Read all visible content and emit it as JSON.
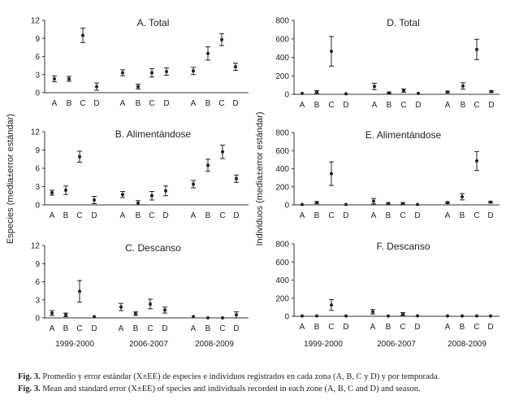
{
  "figure": {
    "left_ylabel": "Especies (media±error estándar)",
    "right_ylabel": "Individuos (media±error estándar)",
    "season_labels": [
      "1999-2000",
      "2006-2007",
      "2008-2009"
    ],
    "zone_labels": [
      "A",
      "B",
      "C",
      "D"
    ],
    "caption_es_label": "Fig. 3.",
    "caption_es_text": "Promedio y error estándar (X±EE) de especies e individuos registrados en cada zona (A, B, C y D) y por temporada.",
    "caption_en_label": "Fig. 3.",
    "caption_en_text": "Mean and standard error (X±EE) of species and individuals recorded in each zone (A, B, C and D) and season."
  },
  "chart_data": [
    {
      "type": "scatter",
      "title": "A. Total",
      "ylim": [
        0,
        12
      ],
      "yticks": [
        0,
        3,
        6,
        9,
        12
      ],
      "categories": [
        "A",
        "B",
        "C",
        "D",
        "A",
        "B",
        "C",
        "D",
        "A",
        "B",
        "C",
        "D"
      ],
      "groups": [
        "1999-2000",
        "2006-2007",
        "2008-2009"
      ],
      "values": [
        2.3,
        2.3,
        9.5,
        1.0,
        3.3,
        1.0,
        3.3,
        3.5,
        3.6,
        6.5,
        8.8,
        4.3
      ],
      "errors": [
        0.5,
        0.4,
        1.2,
        0.6,
        0.5,
        0.4,
        0.7,
        0.6,
        0.6,
        1.1,
        1.0,
        0.6
      ]
    },
    {
      "type": "scatter",
      "title": "B. Alimentándose",
      "ylim": [
        0,
        12
      ],
      "yticks": [
        0,
        3,
        6,
        9,
        12
      ],
      "categories": [
        "A",
        "B",
        "C",
        "D",
        "A",
        "B",
        "C",
        "D",
        "A",
        "B",
        "C",
        "D"
      ],
      "groups": [
        "1999-2000",
        "2006-2007",
        "2008-2009"
      ],
      "values": [
        2.0,
        2.4,
        7.9,
        0.8,
        1.7,
        0.3,
        1.5,
        2.3,
        3.4,
        6.5,
        8.7,
        4.3
      ],
      "errors": [
        0.4,
        0.7,
        0.9,
        0.6,
        0.5,
        0.4,
        0.7,
        0.8,
        0.6,
        1.0,
        1.1,
        0.6
      ]
    },
    {
      "type": "scatter",
      "title": "C. Descanso",
      "ylim": [
        0,
        12
      ],
      "yticks": [
        0,
        3,
        6,
        9,
        12
      ],
      "categories": [
        "A",
        "B",
        "C",
        "D",
        "A",
        "B",
        "C",
        "D",
        "A",
        "B",
        "C",
        "D"
      ],
      "groups": [
        "1999-2000",
        "2006-2007",
        "2008-2009"
      ],
      "values": [
        0.8,
        0.5,
        4.4,
        0.2,
        1.8,
        0.7,
        2.3,
        1.3,
        0.2,
        0.0,
        0.0,
        0.5
      ],
      "errors": [
        0.4,
        0.3,
        1.8,
        0.1,
        0.6,
        0.3,
        0.8,
        0.5,
        0.1,
        0.0,
        0.0,
        0.5
      ]
    },
    {
      "type": "scatter",
      "title": "D. Total",
      "ylim": [
        0,
        800
      ],
      "yticks": [
        0,
        200,
        400,
        600,
        800
      ],
      "categories": [
        "A",
        "B",
        "C",
        "D",
        "A",
        "B",
        "C",
        "D",
        "A",
        "B",
        "C",
        "D"
      ],
      "groups": [
        "1999-2000",
        "2006-2007",
        "2008-2009"
      ],
      "values": [
        10,
        25,
        465,
        5,
        85,
        15,
        40,
        10,
        25,
        90,
        485,
        30
      ],
      "errors": [
        5,
        15,
        160,
        3,
        35,
        8,
        18,
        5,
        10,
        35,
        110,
        8
      ]
    },
    {
      "type": "scatter",
      "title": "E. Alimentándose",
      "ylim": [
        0,
        800
      ],
      "yticks": [
        0,
        200,
        400,
        600,
        800
      ],
      "categories": [
        "A",
        "B",
        "C",
        "D",
        "A",
        "B",
        "C",
        "D",
        "A",
        "B",
        "C",
        "D"
      ],
      "groups": [
        "1999-2000",
        "2006-2007",
        "2008-2009"
      ],
      "values": [
        5,
        25,
        345,
        5,
        40,
        15,
        15,
        5,
        25,
        90,
        485,
        30
      ],
      "errors": [
        4,
        12,
        130,
        3,
        30,
        10,
        10,
        4,
        10,
        35,
        105,
        8
      ]
    },
    {
      "type": "scatter",
      "title": "F. Descanso",
      "ylim": [
        0,
        800
      ],
      "yticks": [
        0,
        200,
        400,
        600,
        800
      ],
      "categories": [
        "A",
        "B",
        "C",
        "D",
        "A",
        "B",
        "C",
        "D",
        "A",
        "B",
        "C",
        "D"
      ],
      "groups": [
        "1999-2000",
        "2006-2007",
        "2008-2009"
      ],
      "values": [
        3,
        3,
        125,
        3,
        50,
        3,
        25,
        5,
        3,
        3,
        3,
        3
      ],
      "errors": [
        2,
        2,
        60,
        2,
        25,
        2,
        15,
        3,
        2,
        2,
        2,
        2
      ]
    }
  ]
}
